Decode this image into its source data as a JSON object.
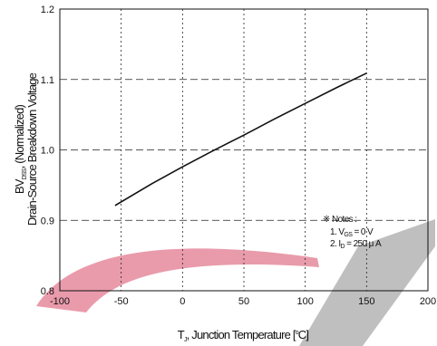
{
  "chart_data": {
    "type": "line",
    "xlim": [
      -100,
      200
    ],
    "ylim": [
      0.8,
      1.2
    ],
    "x_ticks": [
      -100,
      -50,
      0,
      50,
      100,
      150,
      200
    ],
    "y_ticks": [
      0.8,
      0.9,
      1.0,
      1.1,
      1.2
    ],
    "x_tick_labels": [
      "-100",
      "-50",
      "0",
      "50",
      "100",
      "150",
      "200"
    ],
    "y_tick_labels": [
      "0.8",
      "0.9",
      "1.0",
      "1.1",
      "1.2"
    ],
    "grid": true,
    "series": [
      {
        "x": [
          -55,
          -25,
          0,
          25,
          50,
          75,
          100,
          125,
          150
        ],
        "y": [
          0.921,
          0.952,
          0.976,
          0.999,
          1.021,
          1.044,
          1.066,
          1.088,
          1.109
        ]
      }
    ],
    "ylabel_line1": {
      "main": "BV",
      "sub": "DSS",
      "rest": ", (Normalized)"
    },
    "ylabel_line2": "Drain-Source Breakdown Voltage",
    "xlabel": {
      "main": "T",
      "sub": "J",
      "rest": ", Junction Temperature [",
      "sup": "o",
      "end": "C]"
    },
    "notes": {
      "title": "※ Notes :",
      "line1": {
        "prefix": "1. V",
        "sub": "GS",
        "rest": " = 0 V"
      },
      "line2": {
        "prefix": "2. I",
        "sub": "D",
        "rest": " = 250 μ A"
      }
    },
    "colors": {
      "line": "#111111",
      "grid": "#222222",
      "watermark_pink": "#e58a9c",
      "watermark_gray": "#b4b4b4"
    }
  }
}
